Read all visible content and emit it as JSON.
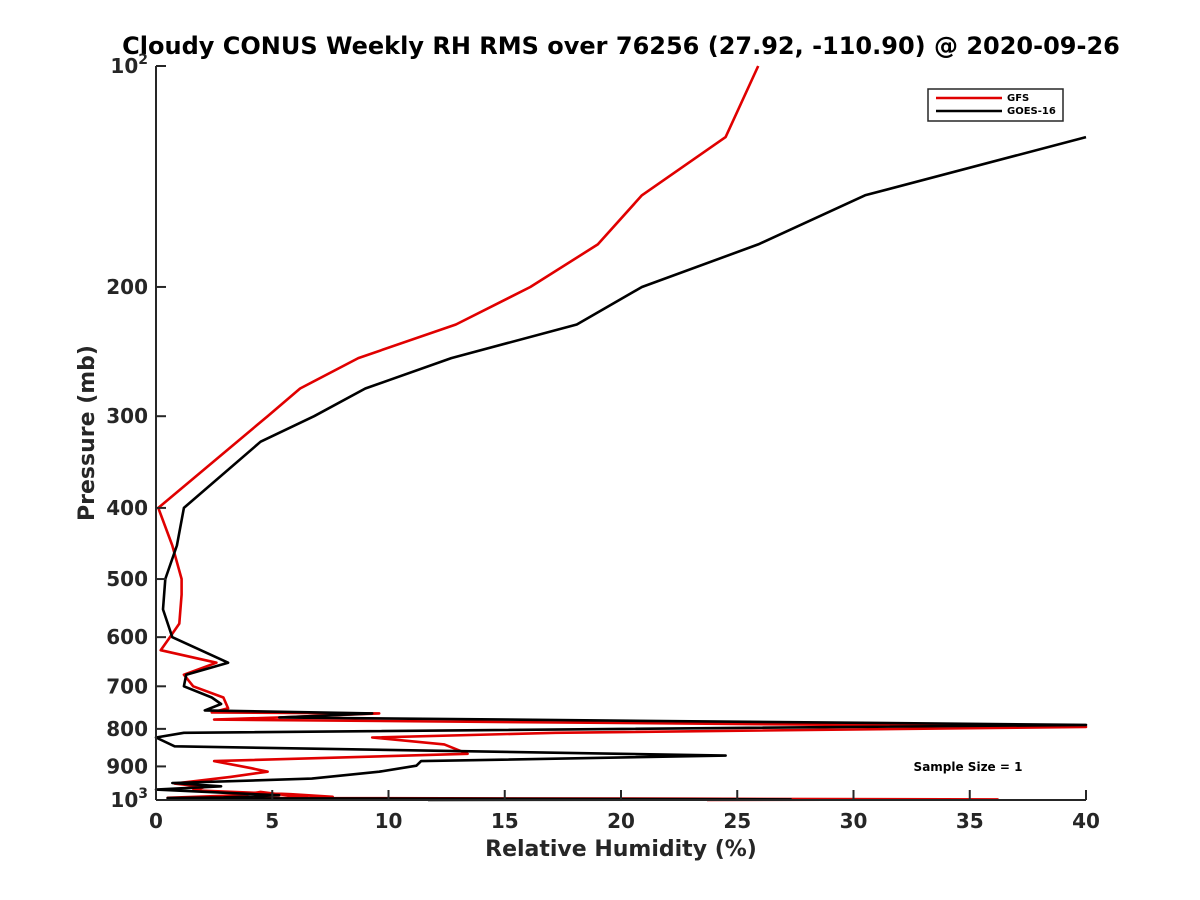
{
  "chart_data": {
    "type": "line",
    "title": "Cloudy CONUS Weekly RH RMS over 76256 (27.92, -110.90) @ 2020-09-26",
    "xlabel": "Relative Humidity (%)",
    "ylabel": "Pressure (mb)",
    "xlim": [
      0,
      40
    ],
    "ylim": [
      100,
      1000
    ],
    "yscale": "log",
    "y_reversed": true,
    "grid": false,
    "x_ticks": [
      "0",
      "5",
      "10",
      "15",
      "20",
      "25",
      "30",
      "35",
      "40"
    ],
    "y_ticks": [
      {
        "value": 100,
        "base": "10",
        "exp": "2"
      },
      {
        "value": 200,
        "label": "200"
      },
      {
        "value": 300,
        "label": "300"
      },
      {
        "value": 400,
        "label": "400"
      },
      {
        "value": 500,
        "label": "500"
      },
      {
        "value": 600,
        "label": "600"
      },
      {
        "value": 700,
        "label": "700"
      },
      {
        "value": 800,
        "label": "800"
      },
      {
        "value": 900,
        "label": "900"
      },
      {
        "value": 1000,
        "base": "10",
        "exp": "3"
      }
    ],
    "legend": {
      "position": "top-right",
      "entries": [
        "GFS",
        "GOES-16"
      ]
    },
    "annotation": "Sample Size = 1",
    "series": [
      {
        "name": "GFS",
        "color": "#e00000",
        "points": [
          [
            25.9,
            100
          ],
          [
            24.5,
            125
          ],
          [
            20.9,
            150
          ],
          [
            19.0,
            175
          ],
          [
            16.1,
            200
          ],
          [
            12.9,
            225
          ],
          [
            8.7,
            250
          ],
          [
            6.2,
            275
          ],
          [
            4.8,
            300
          ],
          [
            0.1,
            400
          ],
          [
            0.7,
            450
          ],
          [
            1.1,
            500
          ],
          [
            1.1,
            525
          ],
          [
            1.0,
            575
          ],
          [
            0.6,
            600
          ],
          [
            0.2,
            625
          ],
          [
            2.6,
            650
          ],
          [
            1.2,
            675
          ],
          [
            1.6,
            700
          ],
          [
            2.9,
            725
          ],
          [
            3.1,
            750
          ],
          [
            2.4,
            760
          ],
          [
            9.6,
            762
          ],
          [
            5.2,
            772
          ],
          [
            2.5,
            777
          ],
          [
            40.0,
            795
          ],
          [
            17.2,
            810
          ],
          [
            9.3,
            822
          ],
          [
            12.4,
            840
          ],
          [
            13.4,
            865
          ],
          [
            2.5,
            885
          ],
          [
            4.1,
            905
          ],
          [
            4.8,
            915
          ],
          [
            3.2,
            930
          ],
          [
            0.8,
            950
          ],
          [
            2.1,
            960
          ],
          [
            1.6,
            970
          ],
          [
            5.8,
            982
          ],
          [
            7.6,
            990
          ],
          [
            6.9,
            997
          ],
          [
            4.5,
            975
          ],
          [
            3.7,
            985
          ],
          [
            0.5,
            993
          ],
          [
            22.9,
            996
          ],
          [
            36.2,
            998
          ],
          [
            23.7,
            1000
          ]
        ]
      },
      {
        "name": "GOES-16",
        "color": "#000000",
        "points": [
          [
            40.0,
            125
          ],
          [
            30.5,
            150
          ],
          [
            25.9,
            175
          ],
          [
            20.9,
            200
          ],
          [
            18.1,
            225
          ],
          [
            12.7,
            250
          ],
          [
            9.0,
            275
          ],
          [
            6.8,
            300
          ],
          [
            4.5,
            325
          ],
          [
            1.2,
            400
          ],
          [
            0.9,
            450
          ],
          [
            0.4,
            500
          ],
          [
            0.3,
            550
          ],
          [
            0.7,
            600
          ],
          [
            3.1,
            650
          ],
          [
            1.3,
            675
          ],
          [
            1.2,
            700
          ],
          [
            2.4,
            725
          ],
          [
            2.8,
            740
          ],
          [
            2.1,
            755
          ],
          [
            9.3,
            762
          ],
          [
            5.3,
            772
          ],
          [
            40.0,
            790
          ],
          [
            1.2,
            810
          ],
          [
            0.0,
            822
          ],
          [
            0.8,
            845
          ],
          [
            24.5,
            870
          ],
          [
            11.4,
            885
          ],
          [
            11.2,
            898
          ],
          [
            9.6,
            915
          ],
          [
            6.7,
            935
          ],
          [
            0.7,
            948
          ],
          [
            2.8,
            958
          ],
          [
            0.0,
            968
          ],
          [
            3.7,
            980
          ],
          [
            5.3,
            985
          ],
          [
            2.9,
            992
          ],
          [
            0.5,
            994
          ],
          [
            27.3,
            998
          ],
          [
            11.7,
            1000
          ]
        ]
      }
    ]
  }
}
